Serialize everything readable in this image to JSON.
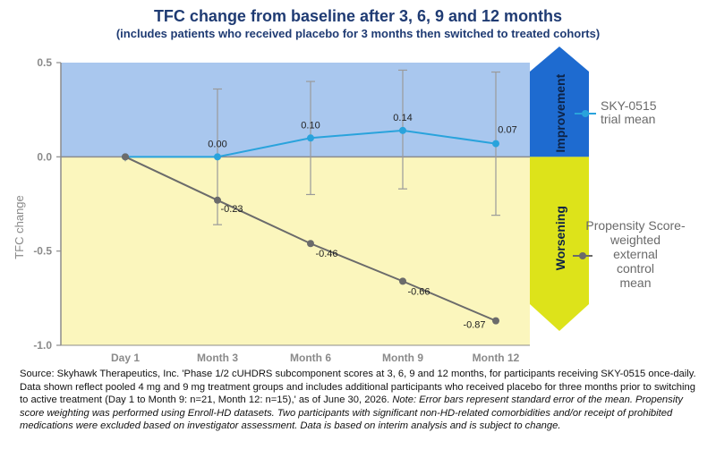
{
  "title": "TFC change from baseline after 3, 6, 9 and 12 months",
  "subtitle": "(includes patients who received placebo for 3 months then switched to treated cohorts)",
  "colors": {
    "improvement_band": "#a9c7ee",
    "worsening_band": "#fbf6bd",
    "improvement_arrow": "#1e6bd0",
    "worsening_arrow": "#dde31a",
    "series_treated": "#29a3dc",
    "series_control": "#6b6b6b",
    "error_bar": "#9a9a9a",
    "title": "#1f3b73"
  },
  "arrow_labels": {
    "improvement": "Improvement",
    "worsening": "Worsening"
  },
  "chart_data": {
    "type": "line",
    "ylabel": "TFC change",
    "xlabel": "",
    "categories": [
      "Day 1",
      "Month 3",
      "Month 6",
      "Month 9",
      "Month 12"
    ],
    "ylim": [
      -1.0,
      0.5
    ],
    "yticks": [
      0.5,
      0.0,
      -0.5,
      -1.0
    ],
    "ytick_labels": [
      "0.5",
      "0.0",
      "-0.5",
      "-1.0"
    ],
    "grid": false,
    "legend_placement": "right",
    "series": [
      {
        "name": "SKY-0515 trial mean",
        "color": "#29a3dc",
        "values": [
          0.0,
          0.0,
          0.1,
          0.14,
          0.07
        ],
        "labels": [
          "",
          "0.00",
          "0.10",
          "0.14",
          "0.07"
        ],
        "error_low": [
          null,
          -0.36,
          -0.2,
          -0.17,
          -0.31
        ],
        "error_high": [
          null,
          0.36,
          0.4,
          0.46,
          0.45
        ]
      },
      {
        "name": "Propensity Score-weighted external control mean",
        "color": "#6b6b6b",
        "values": [
          0.0,
          -0.23,
          -0.46,
          -0.66,
          -0.87
        ],
        "labels": [
          "",
          "-0.23",
          "-0.46",
          "-0.66",
          "-0.87"
        ]
      }
    ],
    "legend": [
      {
        "lines": [
          "SKY-0515",
          "trial mean"
        ]
      },
      {
        "lines": [
          "Propensity Score-",
          "weighted",
          "external",
          "control",
          "mean"
        ]
      }
    ]
  },
  "source": {
    "text": "Source: Skyhawk Therapeutics, Inc. 'Phase 1/2 cUHDRS subcomponent scores at 3, 6, 9 and 12 months, for participants receiving SKY-0515 once-daily. Data shown reflect pooled 4 mg and 9 mg treatment groups and includes additional participants who received placebo for three months prior to switching to active treatment (Day 1 to Month 9: n=21, Month 12: n=15),' as of June 30, 2026.",
    "note": "Note: Error bars represent standard error of the mean. Propensity score weighting was performed using Enroll-HD datasets. Two participants with significant non-HD-related comorbidities and/or receipt of prohibited medications were excluded based on investigator assessment. Data is based on interim analysis and is subject to change."
  }
}
